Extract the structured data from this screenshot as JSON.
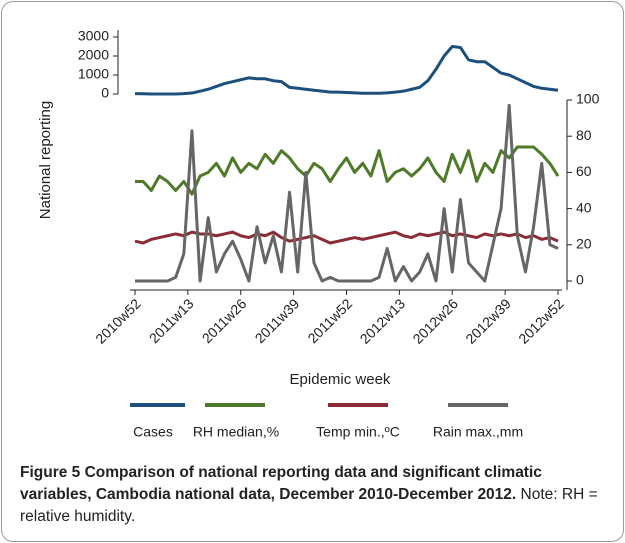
{
  "chart_data": [
    {
      "type": "line",
      "ylabel": "National reporting",
      "x": [
        0,
        2,
        4,
        6,
        8,
        10,
        12,
        14,
        16,
        18,
        20,
        22,
        24,
        26,
        28,
        30,
        32,
        34,
        36,
        38,
        40,
        42,
        44,
        46,
        48,
        50,
        52,
        54,
        56,
        58,
        60,
        62,
        64,
        66,
        68,
        70,
        72,
        74,
        76,
        78,
        80,
        82,
        84,
        86,
        88,
        90,
        92,
        94,
        96,
        98,
        100,
        102,
        104
      ],
      "xlim": [
        0,
        104
      ],
      "ylim": [
        0,
        3000
      ],
      "yticks": [
        0,
        1000,
        2000,
        3000
      ],
      "series": [
        {
          "name": "Cases",
          "color": "#1c4f7c",
          "values": [
            20,
            10,
            0,
            0,
            0,
            0,
            20,
            50,
            150,
            250,
            400,
            550,
            650,
            750,
            850,
            800,
            800,
            700,
            650,
            350,
            300,
            250,
            200,
            150,
            100,
            100,
            80,
            60,
            40,
            40,
            40,
            60,
            100,
            150,
            250,
            350,
            700,
            1300,
            2000,
            2500,
            2450,
            1800,
            1700,
            1700,
            1400,
            1100,
            1000,
            800,
            600,
            400,
            300,
            250,
            200
          ]
        }
      ]
    },
    {
      "type": "line",
      "xlabel": "Epidemic week",
      "x": [
        0,
        2,
        4,
        6,
        8,
        10,
        12,
        14,
        16,
        18,
        20,
        22,
        24,
        26,
        28,
        30,
        32,
        34,
        36,
        38,
        40,
        42,
        44,
        46,
        48,
        50,
        52,
        54,
        56,
        58,
        60,
        62,
        64,
        66,
        68,
        70,
        72,
        74,
        76,
        78,
        80,
        82,
        84,
        86,
        88,
        90,
        92,
        94,
        96,
        98,
        100,
        102,
        104
      ],
      "xlim": [
        0,
        104
      ],
      "xticks": [
        {
          "value": 0,
          "label": "2010w52"
        },
        {
          "value": 13,
          "label": "2011w13"
        },
        {
          "value": 26,
          "label": "2011w26"
        },
        {
          "value": 39,
          "label": "2011w39"
        },
        {
          "value": 52,
          "label": "2011w52"
        },
        {
          "value": 65,
          "label": "2012w13"
        },
        {
          "value": 78,
          "label": "2012w26"
        },
        {
          "value": 91,
          "label": "2012w39"
        },
        {
          "value": 104,
          "label": "2012w52"
        }
      ],
      "y2lim": [
        0,
        100
      ],
      "y2ticks": [
        0,
        20,
        40,
        60,
        80,
        100
      ],
      "series": [
        {
          "name": "RH median,%",
          "color": "#4e7a2a",
          "axis": "y2",
          "values": [
            55,
            55,
            50,
            58,
            55,
            50,
            55,
            48,
            58,
            60,
            65,
            58,
            68,
            60,
            65,
            62,
            70,
            65,
            72,
            68,
            62,
            58,
            65,
            62,
            55,
            62,
            68,
            60,
            65,
            58,
            72,
            55,
            60,
            62,
            58,
            62,
            68,
            60,
            55,
            70,
            60,
            72,
            55,
            65,
            60,
            72,
            68,
            74,
            74,
            74,
            70,
            65,
            58
          ]
        },
        {
          "name": "Temp min.,ºC",
          "color": "#8b2b35",
          "axis": "y2",
          "values": [
            22,
            21,
            23,
            24,
            25,
            26,
            25,
            27,
            26,
            26,
            25,
            26,
            27,
            25,
            24,
            26,
            25,
            27,
            24,
            22,
            23,
            24,
            25,
            23,
            21,
            22,
            23,
            24,
            23,
            24,
            25,
            26,
            27,
            25,
            24,
            26,
            25,
            26,
            27,
            25,
            26,
            25,
            24,
            26,
            25,
            26,
            25,
            26,
            24,
            25,
            23,
            24,
            22
          ]
        },
        {
          "name": "Rain max.,mm",
          "color": "#666666",
          "axis": "y2",
          "values": [
            0,
            0,
            0,
            0,
            0,
            2,
            15,
            83,
            0,
            35,
            5,
            15,
            22,
            12,
            0,
            30,
            10,
            25,
            5,
            49,
            5,
            60,
            10,
            0,
            2,
            0,
            0,
            0,
            0,
            0,
            2,
            18,
            0,
            8,
            0,
            5,
            15,
            0,
            40,
            5,
            45,
            10,
            5,
            0,
            20,
            40,
            97,
            25,
            5,
            30,
            65,
            20,
            18
          ]
        }
      ]
    }
  ],
  "figure_caption": {
    "title": "Figure 5 Comparison of national reporting data and significant climatic variables, Cambodia national data, December 2010-December 2012.",
    "note": "Note: RH = relative humidity."
  }
}
